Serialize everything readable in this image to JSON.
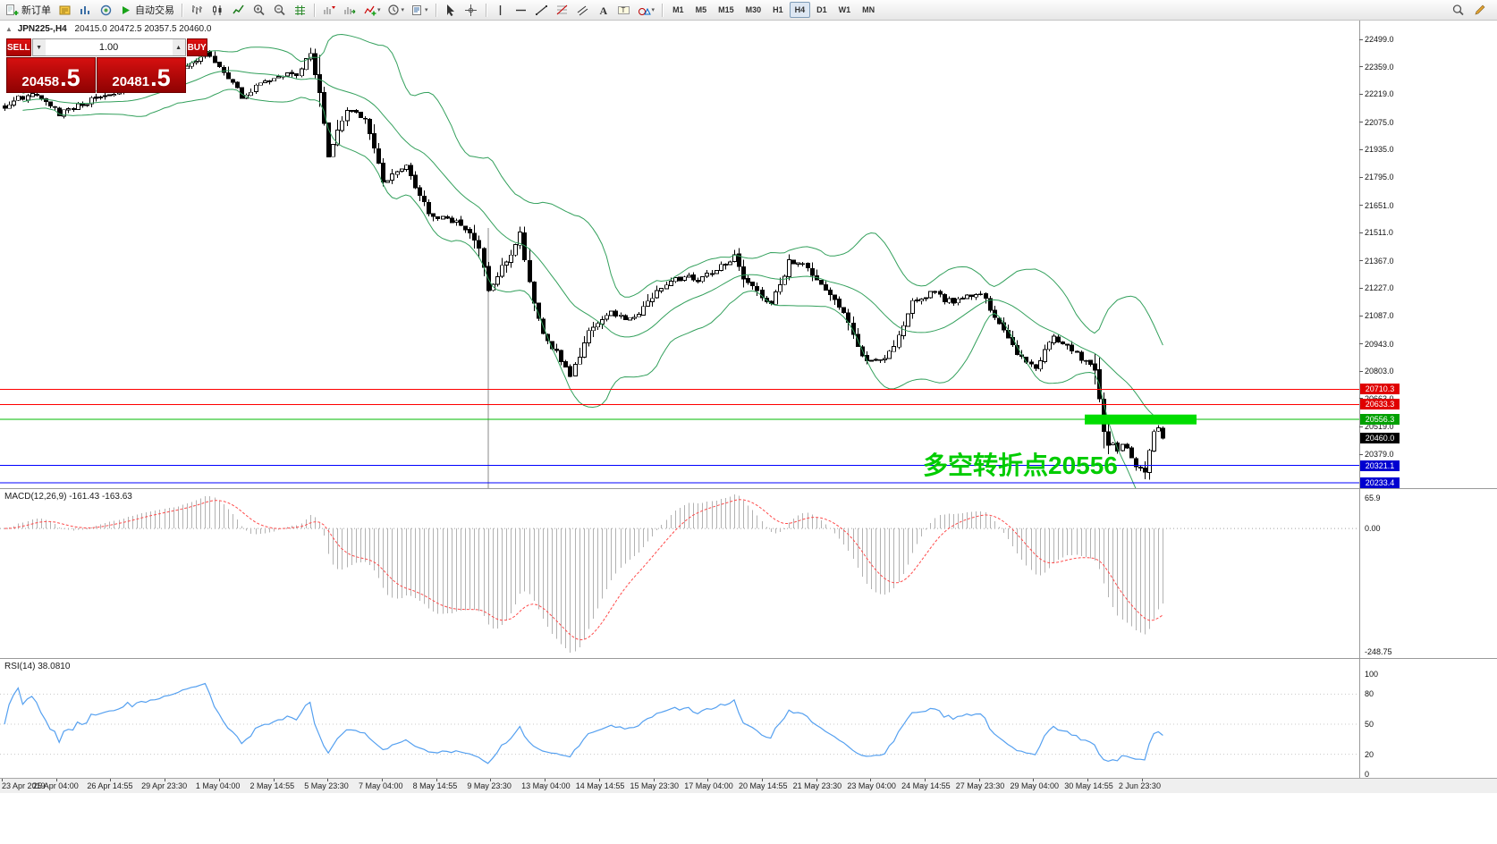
{
  "icons": {
    "caret": "▾",
    "step_down": "▼",
    "step_up": "▲"
  },
  "colors": {
    "band_green": "#33a05c",
    "candle_up": "#ffffff",
    "candle_down": "#000000",
    "candle_border": "#000000",
    "macd_hist": "#b2b2b2",
    "macd_signal": "#ff4a4a",
    "rsi_line": "#55a0f0",
    "highlight_green": "#00dd00",
    "annotation_green": "#00cc00"
  },
  "toolbar": {
    "new_order_label": "新订单",
    "autotrading_label": "自动交易",
    "timeframes": [
      "M1",
      "M5",
      "M15",
      "M30",
      "H1",
      "H4",
      "D1",
      "W1",
      "MN"
    ],
    "active_timeframe": "H4"
  },
  "chart_header": {
    "collapse_icon": "▲",
    "symbol": "JPN225-,H4",
    "ohlc": "20415.0 20472.5 20357.5 20460.0"
  },
  "trade_panel": {
    "sell_label": "SELL",
    "buy_label": "BUY",
    "volume": "1.00",
    "sell_price_main": "20458",
    "sell_price_pips": ".5",
    "buy_price_main": "20481",
    "buy_price_pips": ".5"
  },
  "annotation": {
    "text": "多空转折点20556"
  },
  "price_axis": {
    "labels": [
      "22499.0",
      "22359.0",
      "22219.0",
      "22075.0",
      "21935.0",
      "21795.0",
      "21651.0",
      "21511.0",
      "21367.0",
      "21227.0",
      "21087.0",
      "20943.0",
      "20803.0",
      "20663.0",
      "20519.0",
      "20379.0"
    ]
  },
  "levels": [
    {
      "label": "20710.3",
      "price": 20710.3,
      "line_color": "#ff0000",
      "bg": "#e00000",
      "line": true
    },
    {
      "label": "20633.3",
      "price": 20633.3,
      "line_color": "#ff0000",
      "bg": "#e00000",
      "line": true
    },
    {
      "label": "20556.3",
      "price": 20556.3,
      "line_color": "#00bb00",
      "bg": "#00a000",
      "line": true
    },
    {
      "label": "20460.0",
      "price": 20460.0,
      "line_color": "#000000",
      "bg": "#000000",
      "line": false
    },
    {
      "label": "20321.1",
      "price": 20321.1,
      "line_color": "#0000ff",
      "bg": "#0000d0",
      "line": true
    },
    {
      "label": "20233.4",
      "price": 20233.4,
      "line_color": "#0000ff",
      "bg": "#0000d0",
      "line": true
    }
  ],
  "macd": {
    "label": "MACD(12,26,9) -161.43 -163.63",
    "fast": 12,
    "slow": 26,
    "signal": 9,
    "value": -161.43,
    "signal_value": -163.63,
    "axis_max": "65.9",
    "axis_zero": "0.00",
    "axis_min": "-248.75"
  },
  "rsi": {
    "label": "RSI(14) 38.0810",
    "period": 14,
    "value": 38.081,
    "axis": [
      "100",
      "80",
      "50",
      "20",
      "0"
    ],
    "levels": [
      80,
      50,
      20
    ]
  },
  "time_axis": {
    "labels": [
      "23 Apr 2019",
      "25 Apr 04:00",
      "26 Apr 14:55",
      "29 Apr 23:30",
      "1 May 04:00",
      "2 May 14:55",
      "5 May 23:30",
      "7 May 04:00",
      "8 May 14:55",
      "9 May 23:30",
      "13 May 04:00",
      "14 May 14:55",
      "15 May 23:30",
      "17 May 04:00",
      "20 May 14:55",
      "21 May 23:30",
      "23 May 04:00",
      "24 May 14:55",
      "27 May 23:30",
      "29 May 04:00",
      "30 May 14:55",
      "2 Jun 23:30"
    ]
  },
  "chart_data": {
    "type": "candlestick",
    "symbol": "JPN225-",
    "timeframe": "H4",
    "visible_ohlc": {
      "open": 20415.0,
      "high": 20472.5,
      "low": 20357.5,
      "close": 20460.0
    },
    "price_axis_range": [
      20379.0,
      22499.0
    ],
    "candle_count": 255,
    "close_path": [
      [
        0,
        22160
      ],
      [
        6,
        22230
      ],
      [
        12,
        22120
      ],
      [
        20,
        22200
      ],
      [
        28,
        22260
      ],
      [
        36,
        22310
      ],
      [
        44,
        22430
      ],
      [
        48,
        22330
      ],
      [
        52,
        22210
      ],
      [
        58,
        22300
      ],
      [
        64,
        22320
      ],
      [
        67,
        22420
      ],
      [
        69,
        22240
      ],
      [
        71,
        21900
      ],
      [
        73,
        22030
      ],
      [
        75,
        22150
      ],
      [
        79,
        22090
      ],
      [
        81,
        21950
      ],
      [
        83,
        21760
      ],
      [
        86,
        21830
      ],
      [
        88,
        21860
      ],
      [
        91,
        21700
      ],
      [
        93,
        21620
      ],
      [
        96,
        21580
      ],
      [
        99,
        21560
      ],
      [
        102,
        21500
      ],
      [
        104,
        21430
      ],
      [
        106,
        21210
      ],
      [
        108,
        21300
      ],
      [
        110,
        21360
      ],
      [
        113,
        21500
      ],
      [
        115,
        21260
      ],
      [
        117,
        21060
      ],
      [
        119,
        20960
      ],
      [
        121,
        20900
      ],
      [
        124,
        20790
      ],
      [
        126,
        20880
      ],
      [
        128,
        21010
      ],
      [
        131,
        21080
      ],
      [
        133,
        21110
      ],
      [
        136,
        21060
      ],
      [
        139,
        21090
      ],
      [
        141,
        21160
      ],
      [
        143,
        21220
      ],
      [
        146,
        21260
      ],
      [
        149,
        21290
      ],
      [
        152,
        21270
      ],
      [
        155,
        21310
      ],
      [
        158,
        21350
      ],
      [
        160,
        21400
      ],
      [
        162,
        21280
      ],
      [
        164,
        21230
      ],
      [
        166,
        21180
      ],
      [
        168,
        21160
      ],
      [
        170,
        21240
      ],
      [
        172,
        21360
      ],
      [
        174,
        21350
      ],
      [
        176,
        21340
      ],
      [
        178,
        21270
      ],
      [
        180,
        21210
      ],
      [
        182,
        21170
      ],
      [
        184,
        21110
      ],
      [
        186,
        20980
      ],
      [
        188,
        20870
      ],
      [
        191,
        20850
      ],
      [
        193,
        20880
      ],
      [
        195,
        20920
      ],
      [
        197,
        21040
      ],
      [
        199,
        21150
      ],
      [
        202,
        21190
      ],
      [
        204,
        21210
      ],
      [
        206,
        21170
      ],
      [
        209,
        21160
      ],
      [
        211,
        21180
      ],
      [
        214,
        21210
      ],
      [
        216,
        21120
      ],
      [
        218,
        21050
      ],
      [
        220,
        20970
      ],
      [
        222,
        20900
      ],
      [
        224,
        20860
      ],
      [
        226,
        20820
      ],
      [
        228,
        20900
      ],
      [
        230,
        20980
      ],
      [
        232,
        20950
      ],
      [
        234,
        20920
      ],
      [
        236,
        20870
      ],
      [
        238,
        20840
      ],
      [
        239,
        20820
      ],
      [
        240,
        20650
      ],
      [
        241,
        20480
      ],
      [
        242,
        20430
      ],
      [
        243,
        20420
      ],
      [
        244,
        20390
      ],
      [
        245,
        20420
      ],
      [
        246,
        20400
      ],
      [
        247,
        20350
      ],
      [
        248,
        20330
      ],
      [
        249,
        20300
      ],
      [
        250,
        20290
      ],
      [
        251,
        20390
      ],
      [
        252,
        20480
      ],
      [
        253,
        20500
      ],
      [
        254,
        20460
      ]
    ],
    "low_spikes": [
      [
        250,
        20252
      ]
    ],
    "bollinger": {
      "period": 20,
      "deviation": 2
    },
    "support_resistance_levels": [
      20710.3,
      20633.3,
      20556.3,
      20321.1,
      20233.4
    ],
    "highlight_zone": {
      "price": 20556.3,
      "note": "多空转折点20556"
    }
  }
}
